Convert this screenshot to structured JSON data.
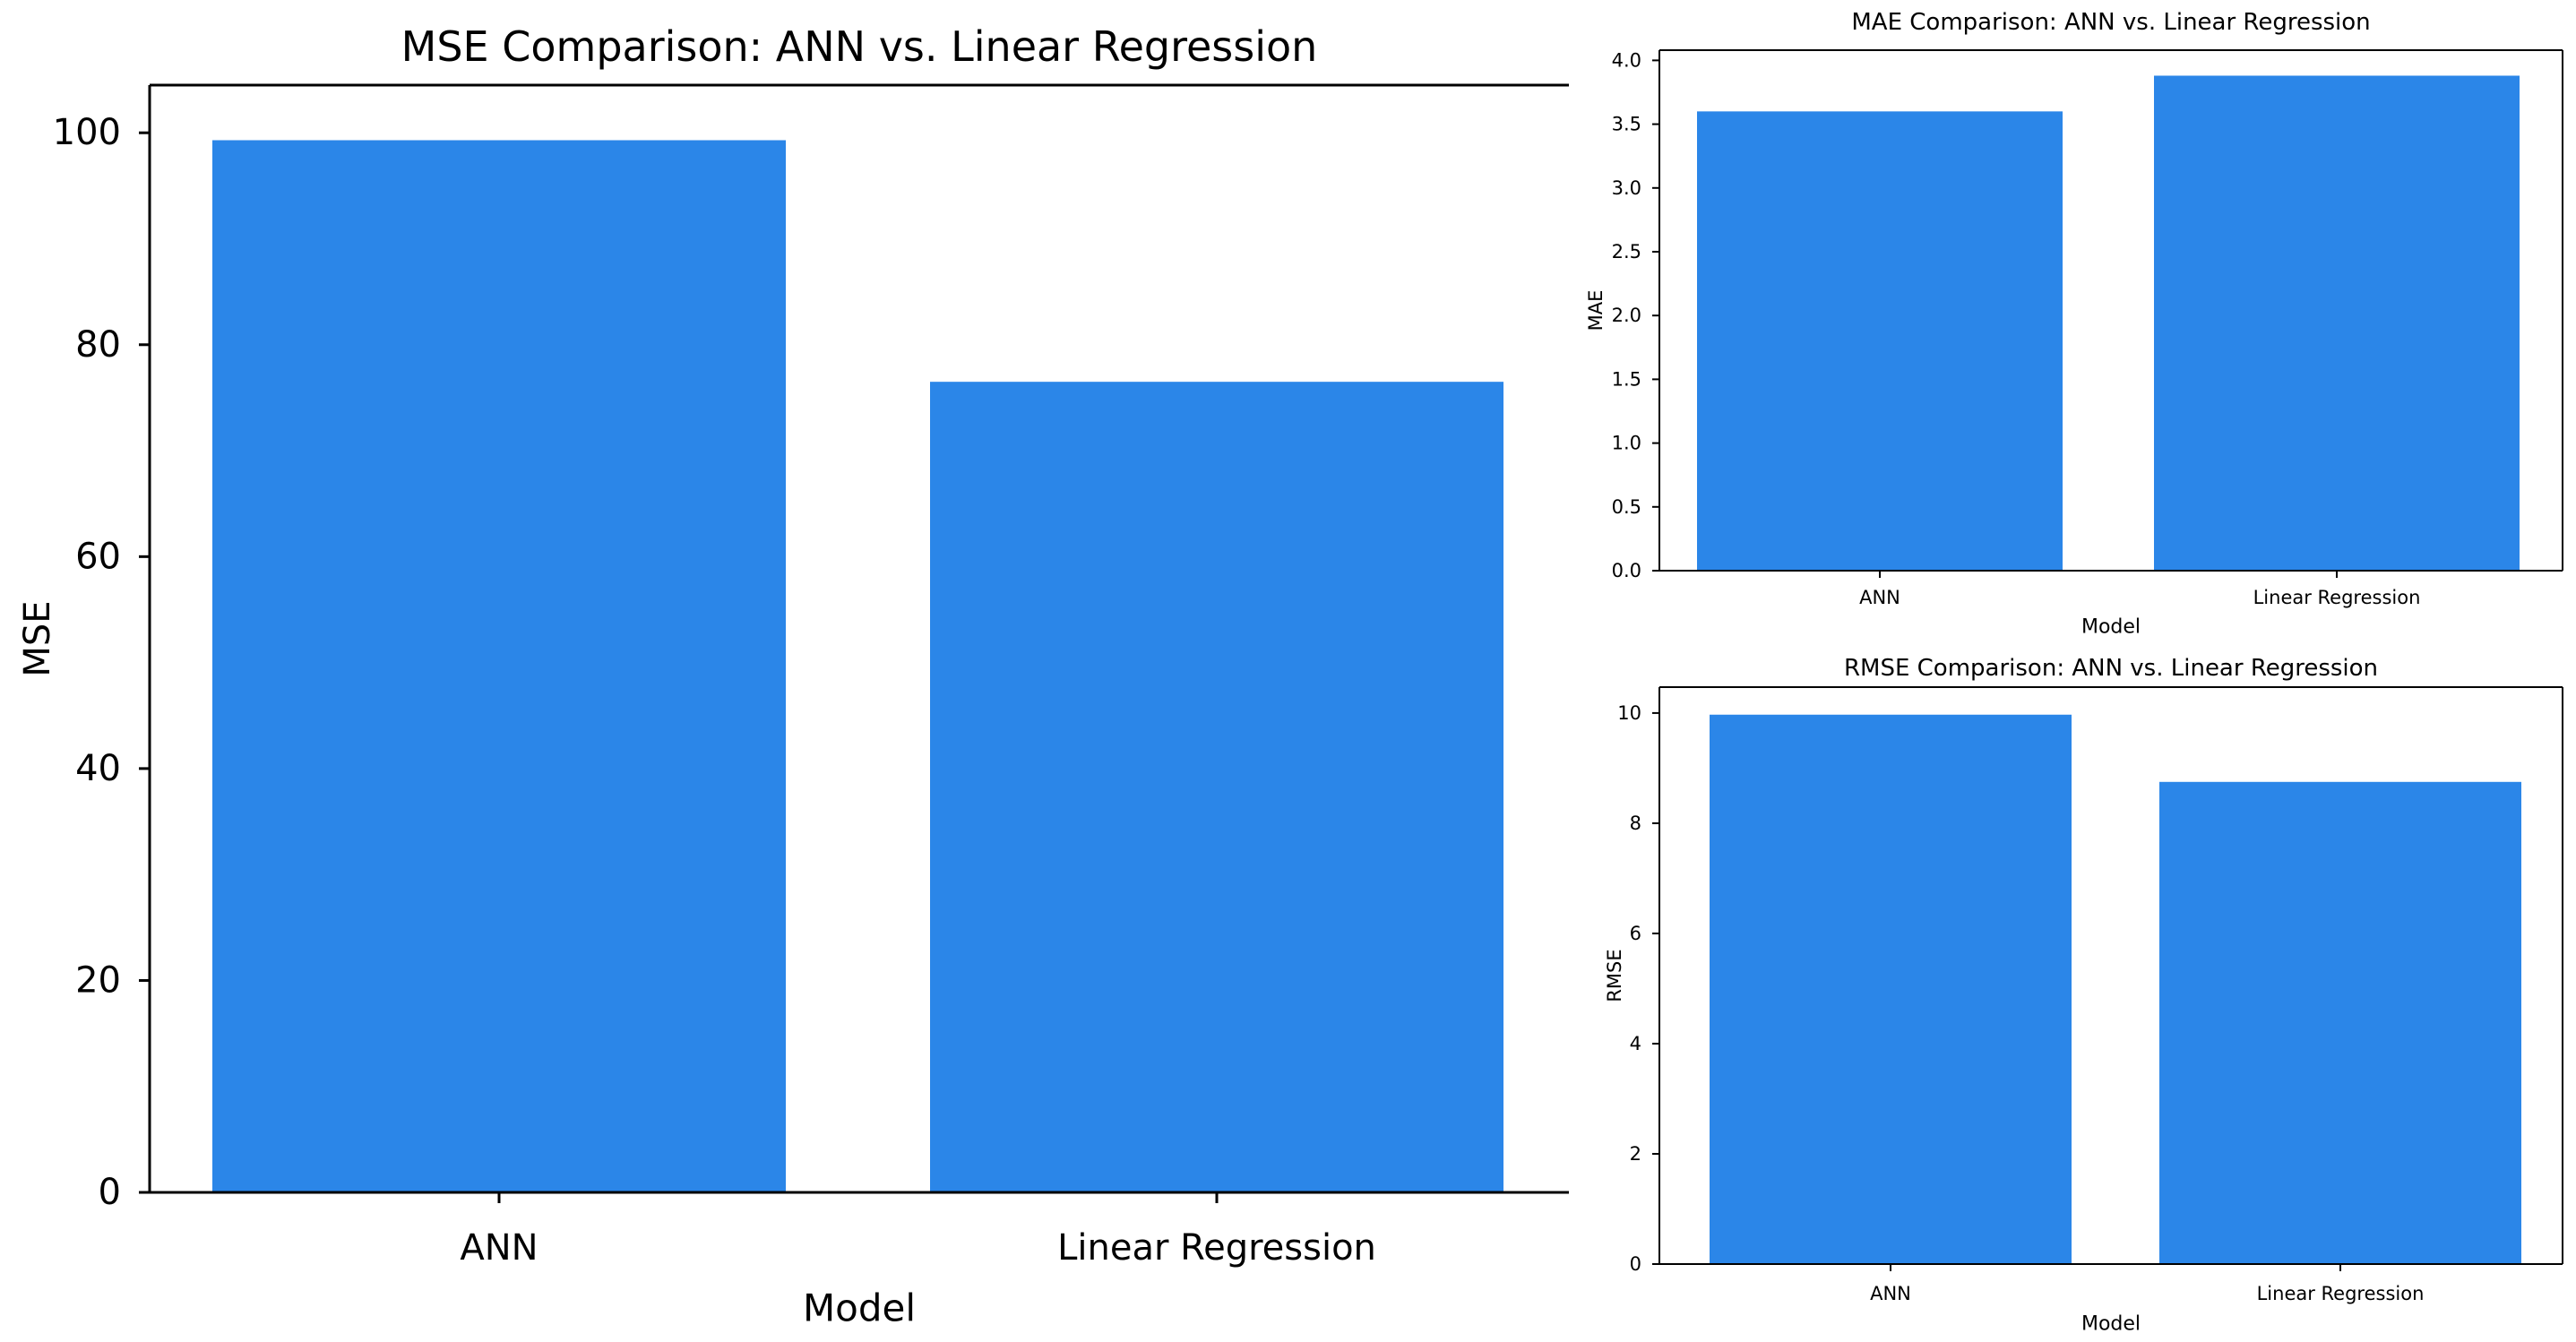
{
  "chart_data": [
    {
      "type": "bar",
      "title": "MSE Comparison: ANN vs. Linear Regression",
      "xlabel": "Model",
      "ylabel": "MSE",
      "categories": [
        "ANN",
        "Linear Regression"
      ],
      "values": [
        99.3,
        76.5
      ],
      "ylim": [
        0,
        104.5
      ],
      "yticks": [
        0,
        20,
        40,
        60,
        80,
        100
      ],
      "ytick_labels": [
        "0",
        "20",
        "40",
        "60",
        "80",
        "100"
      ],
      "bar_color": "#2b86e8",
      "grid": false
    },
    {
      "type": "bar",
      "title": "MAE Comparison: ANN vs. Linear Regression",
      "xlabel": "Model",
      "ylabel": "MAE",
      "categories": [
        "ANN",
        "Linear Regression"
      ],
      "values": [
        3.6,
        3.88
      ],
      "ylim": [
        0,
        4.08
      ],
      "yticks": [
        0,
        0.5,
        1.0,
        1.5,
        2.0,
        2.5,
        3.0,
        3.5,
        4.0
      ],
      "ytick_labels": [
        "0.0",
        "0.5",
        "1.0",
        "1.5",
        "2.0",
        "2.5",
        "3.0",
        "3.5",
        "4.0"
      ],
      "bar_color": "#2b86e8",
      "grid": false
    },
    {
      "type": "bar",
      "title": "RMSE Comparison: ANN vs. Linear Regression",
      "xlabel": "Model",
      "ylabel": "RMSE",
      "categories": [
        "ANN",
        "Linear Regression"
      ],
      "values": [
        9.97,
        8.75
      ],
      "ylim": [
        0,
        10.47
      ],
      "yticks": [
        0,
        2,
        4,
        6,
        8,
        10
      ],
      "ytick_labels": [
        "0",
        "2",
        "4",
        "6",
        "8",
        "10"
      ],
      "bar_color": "#2b86e8",
      "grid": false
    }
  ]
}
